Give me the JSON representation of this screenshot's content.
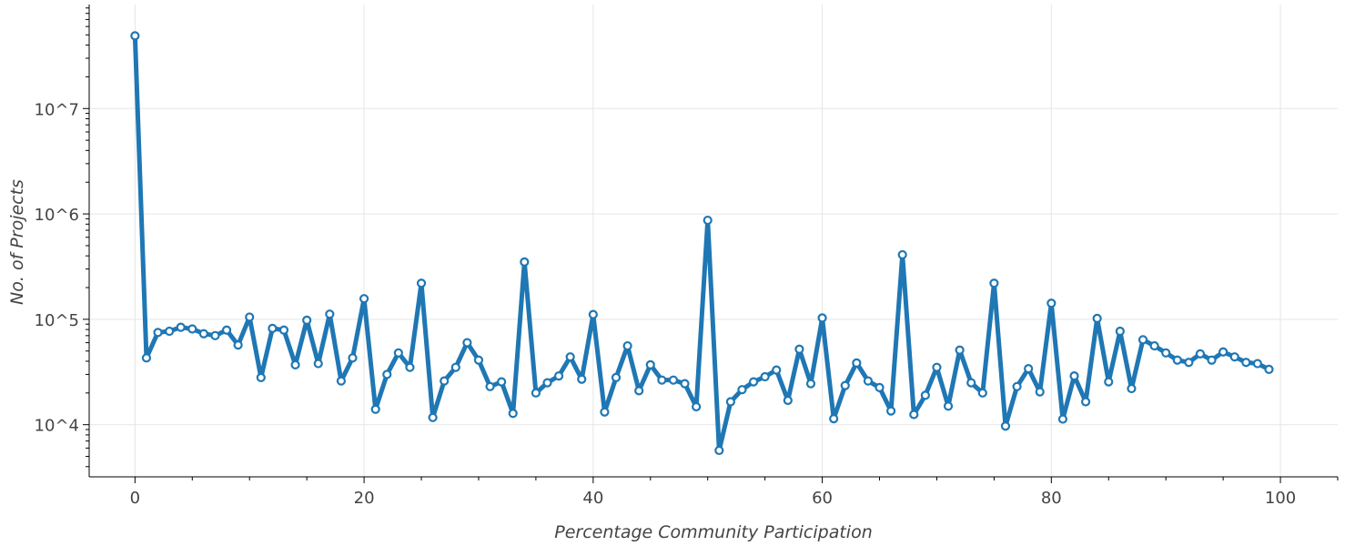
{
  "chart_data": {
    "type": "line",
    "title": "",
    "xlabel": "Percentage Community Participation",
    "ylabel": "No. of Projects",
    "y_scale": "log",
    "xlim": [
      -4,
      105
    ],
    "ylim": [
      3200,
      97000000
    ],
    "x_ticks": [
      0,
      20,
      40,
      60,
      80,
      100
    ],
    "x_tick_labels": [
      "0",
      "20",
      "40",
      "60",
      "80",
      "100"
    ],
    "y_ticks": [
      10000,
      100000,
      1000000,
      10000000
    ],
    "y_tick_labels": [
      "10^4",
      "10^5",
      "10^6",
      "10^7"
    ],
    "grid": true,
    "colors": {
      "series": "#1f77b4",
      "grid": "#e5e5e5",
      "axis": "#000000",
      "text": "#444444"
    },
    "series": [
      {
        "x": [
          0,
          1,
          2,
          3,
          4,
          5,
          6,
          7,
          8,
          9,
          10,
          11,
          12,
          13,
          14,
          15,
          16,
          17,
          18,
          19,
          20,
          21,
          22,
          23,
          24,
          25,
          26,
          27,
          28,
          29,
          30,
          31,
          32,
          33,
          34,
          35,
          36,
          37,
          38,
          39,
          40,
          41,
          42,
          43,
          44,
          45,
          46,
          47,
          48,
          49,
          50,
          51,
          52,
          53,
          54,
          55,
          56,
          57,
          58,
          59,
          60,
          61,
          62,
          63,
          64,
          65,
          66,
          67,
          68,
          69,
          70,
          71,
          72,
          73,
          74,
          75,
          76,
          77,
          78,
          79,
          80,
          81,
          82,
          83,
          84,
          85,
          86,
          87,
          88,
          89,
          90,
          91,
          92,
          93,
          94,
          95,
          96,
          97,
          98,
          99
        ],
        "values": [
          49000000,
          43000,
          75000,
          77000,
          84000,
          81000,
          73000,
          70000,
          79000,
          57000,
          105000,
          28000,
          82000,
          79000,
          37000,
          98000,
          38000,
          112000,
          26000,
          43000,
          157000,
          14000,
          30000,
          48000,
          35000,
          220000,
          11700,
          26000,
          35000,
          60000,
          41000,
          23000,
          25500,
          12800,
          350000,
          20000,
          25000,
          29000,
          44000,
          27000,
          111000,
          13200,
          28000,
          56000,
          21000,
          37000,
          26500,
          26500,
          24500,
          14800,
          870000,
          5700,
          16500,
          21500,
          25500,
          28500,
          33000,
          17000,
          52000,
          24500,
          103000,
          11400,
          23500,
          38500,
          26000,
          22500,
          13500,
          410000,
          12500,
          19000,
          35000,
          15000,
          51000,
          25000,
          20000,
          220000,
          9700,
          23000,
          34000,
          20500,
          142000,
          11300,
          29000,
          16500,
          102000,
          25500,
          77000,
          22000,
          64000,
          56000,
          48000,
          41000,
          39000,
          47000,
          41000,
          49000,
          44000,
          39000,
          38000,
          33500
        ]
      }
    ]
  }
}
